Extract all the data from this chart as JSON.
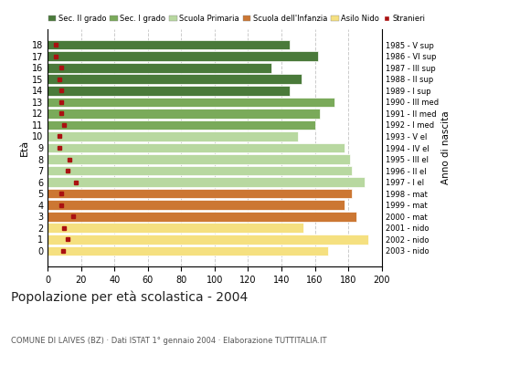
{
  "ages": [
    18,
    17,
    16,
    15,
    14,
    13,
    12,
    11,
    10,
    9,
    8,
    7,
    6,
    5,
    4,
    3,
    2,
    1,
    0
  ],
  "bar_values": [
    145,
    162,
    134,
    152,
    145,
    172,
    163,
    160,
    150,
    178,
    181,
    182,
    190,
    182,
    178,
    185,
    153,
    192,
    168
  ],
  "stranieri": [
    5,
    5,
    8,
    7,
    8,
    8,
    8,
    10,
    7,
    7,
    13,
    12,
    17,
    8,
    8,
    15,
    10,
    12,
    9
  ],
  "anno_nascita": [
    "1985 - V sup",
    "1986 - VI sup",
    "1987 - III sup",
    "1988 - II sup",
    "1989 - I sup",
    "1990 - III med",
    "1991 - II med",
    "1992 - I med",
    "1993 - V el",
    "1994 - IV el",
    "1995 - III el",
    "1996 - II el",
    "1997 - I el",
    "1998 - mat",
    "1999 - mat",
    "2000 - mat",
    "2001 - nido",
    "2002 - nido",
    "2003 - nido"
  ],
  "bar_colors": [
    "#4a7a3a",
    "#4a7a3a",
    "#4a7a3a",
    "#4a7a3a",
    "#4a7a3a",
    "#7aaa5a",
    "#7aaa5a",
    "#7aaa5a",
    "#b8d8a0",
    "#b8d8a0",
    "#b8d8a0",
    "#b8d8a0",
    "#b8d8a0",
    "#cc7733",
    "#cc7733",
    "#cc7733",
    "#f5e080",
    "#f5e080",
    "#f5e080"
  ],
  "legend_labels": [
    "Sec. II grado",
    "Sec. I grado",
    "Scuola Primaria",
    "Scuola dell'Infanzia",
    "Asilo Nido",
    "Stranieri"
  ],
  "legend_colors": [
    "#4a7a3a",
    "#7aaa5a",
    "#b8d8a0",
    "#cc7733",
    "#f5e080",
    "#aa1111"
  ],
  "title": "Popolazione per età scolastica - 2004",
  "subtitle": "COMUNE DI LAIVES (BZ) · Dati ISTAT 1° gennaio 2004 · Elaborazione TUTTITALIA.IT",
  "xlabel_eta": "Età",
  "xlabel_anno": "Anno di nascita",
  "xlim": [
    0,
    200
  ],
  "xticks": [
    0,
    20,
    40,
    60,
    80,
    100,
    120,
    140,
    160,
    180,
    200
  ],
  "stranieri_color": "#aa1111",
  "bg_color": "#ffffff",
  "bar_height": 0.85,
  "grid_color": "#cccccc"
}
